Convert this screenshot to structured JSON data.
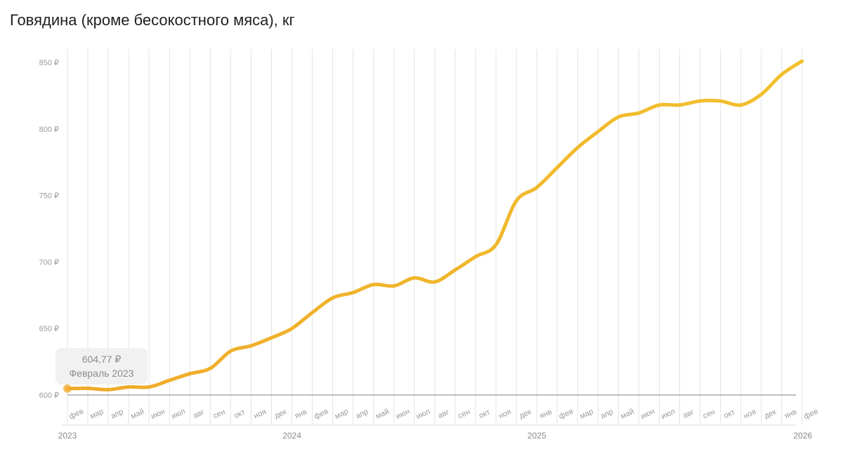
{
  "page_title": "Говядина (кроме бесокостного мяса), кг",
  "tooltip": {
    "value": "604,77 ₽",
    "date": "Февраль 2023"
  },
  "colors": {
    "line": "#f2c12e",
    "line_start": "#efaa2a",
    "grid": "#e3e3e3",
    "baseline": "#7f7f7f",
    "tick": "#9a9a9a"
  },
  "chart_data": {
    "type": "line",
    "title": "Говядина (кроме бескостного мяса), кг",
    "xlabel": "",
    "ylabel": "",
    "ylim": [
      600,
      850
    ],
    "y_ticks": [
      600,
      650,
      700,
      750,
      800,
      850
    ],
    "y_tick_labels": [
      "600 ₽",
      "650 ₽",
      "700 ₽",
      "750 ₽",
      "800 ₽",
      "850 ₽"
    ],
    "grid": true,
    "categories": [
      "фев",
      "мар",
      "апр",
      "май",
      "июн",
      "июл",
      "авг",
      "сен",
      "окт",
      "ноя",
      "дек",
      "янв",
      "фев",
      "мар",
      "апр",
      "май",
      "июн",
      "июл",
      "авг",
      "сен",
      "окт",
      "ноя",
      "дек",
      "янв",
      "фев",
      "мар",
      "апр",
      "май",
      "июн",
      "июл",
      "авг",
      "сен",
      "окт",
      "ноя",
      "дек",
      "янв",
      "фев"
    ],
    "year_labels": [
      {
        "label": "2023",
        "index": 0
      },
      {
        "label": "2024",
        "index": 11
      },
      {
        "label": "2025",
        "index": 23
      },
      {
        "label": "2026",
        "index": 35
      }
    ],
    "values": [
      604.8,
      605,
      604,
      606,
      606,
      611,
      616,
      620,
      633,
      637,
      643,
      650,
      662,
      673,
      677,
      683,
      682,
      688,
      685,
      694,
      704,
      713,
      746,
      756,
      771,
      786,
      798,
      809,
      812,
      818,
      818,
      821,
      821,
      818,
      826,
      841,
      851
    ]
  }
}
